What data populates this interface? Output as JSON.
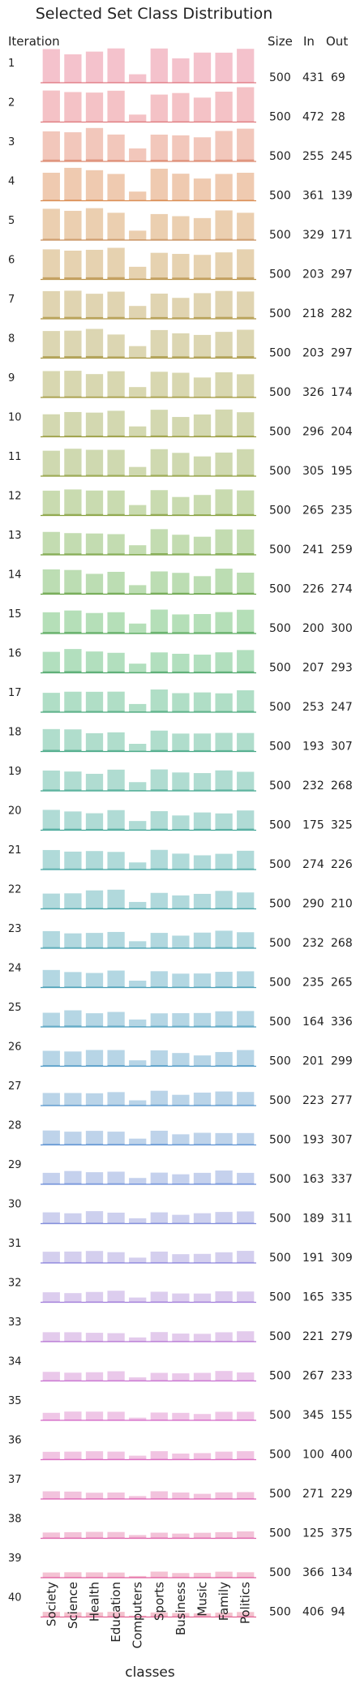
{
  "chart_data": {
    "type": "bar",
    "title": "Selected Set Class Distribution",
    "xlabel": "classes",
    "ylabel": "Iteration",
    "columns": [
      "Size",
      "In",
      "Out"
    ],
    "categories": [
      "Society",
      "Science",
      "Health",
      "Education",
      "Computers",
      "Sports",
      "Business",
      "Music",
      "Family",
      "Politics"
    ],
    "iterations": [
      {
        "iteration": 1,
        "size": 500,
        "in": 431,
        "out": 69,
        "color": "#f4c2cc",
        "accent": "#e07a84"
      },
      {
        "iteration": 2,
        "size": 500,
        "in": 472,
        "out": 28,
        "color": "#f4c2c6",
        "accent": "#e07a7e"
      },
      {
        "iteration": 3,
        "size": 500,
        "in": 255,
        "out": 245,
        "color": "#f2c7bb",
        "accent": "#d9866c"
      },
      {
        "iteration": 4,
        "size": 500,
        "in": 361,
        "out": 139,
        "color": "#efcab0",
        "accent": "#d9894e"
      },
      {
        "iteration": 5,
        "size": 500,
        "in": 329,
        "out": 171,
        "color": "#ebcfb0",
        "accent": "#c78e5a"
      },
      {
        "iteration": 6,
        "size": 500,
        "in": 203,
        "out": 297,
        "color": "#e6d2b0",
        "accent": "#b9924a"
      },
      {
        "iteration": 7,
        "size": 500,
        "in": 218,
        "out": 282,
        "color": "#e0d4b1",
        "accent": "#ad9442"
      },
      {
        "iteration": 8,
        "size": 500,
        "in": 203,
        "out": 297,
        "color": "#dcd6b2",
        "accent": "#a89642"
      },
      {
        "iteration": 9,
        "size": 500,
        "in": 326,
        "out": 174,
        "color": "#d8d7b0",
        "accent": "#a0963a"
      },
      {
        "iteration": 10,
        "size": 500,
        "in": 296,
        "out": 204,
        "color": "#d3d8b0",
        "accent": "#97993a"
      },
      {
        "iteration": 11,
        "size": 500,
        "in": 305,
        "out": 195,
        "color": "#cfd9b0",
        "accent": "#8e9c3a"
      },
      {
        "iteration": 12,
        "size": 500,
        "in": 265,
        "out": 235,
        "color": "#c9dbb0",
        "accent": "#849e3a"
      },
      {
        "iteration": 13,
        "size": 500,
        "in": 241,
        "out": 259,
        "color": "#c3dcb1",
        "accent": "#76a03e"
      },
      {
        "iteration": 14,
        "size": 500,
        "in": 226,
        "out": 274,
        "color": "#bcddb3",
        "accent": "#68a245"
      },
      {
        "iteration": 15,
        "size": 500,
        "in": 200,
        "out": 300,
        "color": "#b5dfb8",
        "accent": "#56a65a"
      },
      {
        "iteration": 16,
        "size": 500,
        "in": 207,
        "out": 293,
        "color": "#b2dfbe",
        "accent": "#4ea66a"
      },
      {
        "iteration": 17,
        "size": 500,
        "in": 253,
        "out": 247,
        "color": "#b0dec6",
        "accent": "#48a67a"
      },
      {
        "iteration": 18,
        "size": 500,
        "in": 193,
        "out": 307,
        "color": "#b0ddcc",
        "accent": "#44a684"
      },
      {
        "iteration": 19,
        "size": 500,
        "in": 232,
        "out": 268,
        "color": "#b0dcd1",
        "accent": "#42a68e"
      },
      {
        "iteration": 20,
        "size": 500,
        "in": 175,
        "out": 325,
        "color": "#b0dbd5",
        "accent": "#42a596"
      },
      {
        "iteration": 21,
        "size": 500,
        "in": 274,
        "out": 226,
        "color": "#b0dad9",
        "accent": "#42a4a0"
      },
      {
        "iteration": 22,
        "size": 500,
        "in": 290,
        "out": 210,
        "color": "#b1d9dc",
        "accent": "#44a2a8"
      },
      {
        "iteration": 23,
        "size": 500,
        "in": 232,
        "out": 268,
        "color": "#b2d8df",
        "accent": "#46a0b0"
      },
      {
        "iteration": 24,
        "size": 500,
        "in": 235,
        "out": 265,
        "color": "#b3d7e2",
        "accent": "#489eb6"
      },
      {
        "iteration": 25,
        "size": 500,
        "in": 164,
        "out": 336,
        "color": "#b5d6e4",
        "accent": "#4a9cbe"
      },
      {
        "iteration": 26,
        "size": 500,
        "in": 201,
        "out": 299,
        "color": "#b7d5e6",
        "accent": "#4e98c6"
      },
      {
        "iteration": 27,
        "size": 500,
        "in": 223,
        "out": 277,
        "color": "#bad4e8",
        "accent": "#5494cc"
      },
      {
        "iteration": 28,
        "size": 500,
        "in": 193,
        "out": 307,
        "color": "#bed3ea",
        "accent": "#5a90d2"
      },
      {
        "iteration": 29,
        "size": 500,
        "in": 163,
        "out": 337,
        "color": "#c5d1ed",
        "accent": "#6a8cd8"
      },
      {
        "iteration": 30,
        "size": 500,
        "in": 189,
        "out": 311,
        "color": "#cdd0ee",
        "accent": "#7c88da"
      },
      {
        "iteration": 31,
        "size": 500,
        "in": 191,
        "out": 309,
        "color": "#d4cfee",
        "accent": "#8c84dc"
      },
      {
        "iteration": 32,
        "size": 500,
        "in": 165,
        "out": 335,
        "color": "#dccdee",
        "accent": "#a07cda"
      },
      {
        "iteration": 33,
        "size": 500,
        "in": 221,
        "out": 279,
        "color": "#e3cbec",
        "accent": "#b676d4"
      },
      {
        "iteration": 34,
        "size": 500,
        "in": 267,
        "out": 233,
        "color": "#eac8ea",
        "accent": "#c870d0"
      },
      {
        "iteration": 35,
        "size": 500,
        "in": 345,
        "out": 155,
        "color": "#efc6e6",
        "accent": "#d46ac8"
      },
      {
        "iteration": 36,
        "size": 500,
        "in": 100,
        "out": 400,
        "color": "#f1c4e2",
        "accent": "#da66c0"
      },
      {
        "iteration": 37,
        "size": 500,
        "in": 271,
        "out": 229,
        "color": "#f2c3dd",
        "accent": "#de64b6"
      },
      {
        "iteration": 38,
        "size": 500,
        "in": 125,
        "out": 375,
        "color": "#f3c2d8",
        "accent": "#e062ac"
      },
      {
        "iteration": 39,
        "size": 500,
        "in": 366,
        "out": 134,
        "color": "#f4c2d3",
        "accent": "#e262a0"
      },
      {
        "iteration": 40,
        "size": 500,
        "in": 406,
        "out": 94,
        "color": "#f4c2ce",
        "accent": "#e26494"
      }
    ]
  }
}
